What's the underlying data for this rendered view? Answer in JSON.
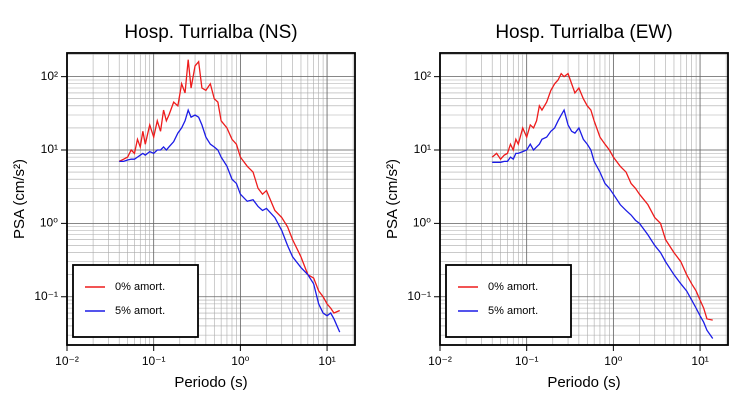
{
  "chart_data": [
    {
      "type": "line",
      "title": "Hosp. Turrialba (NS)",
      "x_label": "Periodo (s)",
      "y_label": "PSA (cm/s²)",
      "log_x": true,
      "log_y": true,
      "grid": true,
      "legend": "lower left",
      "xlim": [
        0.01,
        21
      ],
      "ylim": [
        0.022,
        210
      ],
      "xticks": [
        {
          "value": 0.01,
          "label": "10⁻²"
        },
        {
          "value": 0.1,
          "label": "10⁻¹"
        },
        {
          "value": 1,
          "label": "10⁰"
        },
        {
          "value": 10,
          "label": "10¹"
        }
      ],
      "yticks": [
        {
          "value": 0.1,
          "label": "10⁻¹"
        },
        {
          "value": 1,
          "label": "10⁰"
        },
        {
          "value": 10,
          "label": "10¹"
        },
        {
          "value": 100,
          "label": "10²"
        }
      ],
      "x": [
        0.04,
        0.045,
        0.05,
        0.055,
        0.06,
        0.065,
        0.07,
        0.075,
        0.08,
        0.09,
        0.1,
        0.11,
        0.12,
        0.13,
        0.14,
        0.15,
        0.17,
        0.19,
        0.21,
        0.23,
        0.25,
        0.27,
        0.3,
        0.33,
        0.36,
        0.4,
        0.45,
        0.5,
        0.55,
        0.6,
        0.7,
        0.8,
        0.9,
        1.0,
        1.2,
        1.4,
        1.6,
        1.8,
        2.0,
        2.5,
        3,
        3.5,
        4,
        5,
        6,
        7,
        8,
        9,
        10,
        11,
        12,
        14
      ],
      "series": [
        {
          "name": "0% amort.",
          "color": "#ee1c1c",
          "values": [
            7,
            7.5,
            8,
            10,
            9,
            14,
            11,
            18,
            12,
            22,
            15,
            25,
            18,
            35,
            25,
            30,
            45,
            40,
            80,
            60,
            170,
            70,
            140,
            160,
            70,
            65,
            80,
            50,
            45,
            25,
            20,
            14,
            12,
            8,
            6,
            5,
            3,
            2.5,
            2.8,
            1.5,
            1.2,
            0.9,
            0.6,
            0.35,
            0.2,
            0.18,
            0.12,
            0.1,
            0.08,
            0.07,
            0.06,
            0.065
          ]
        },
        {
          "name": "5% amort.",
          "color": "#1c1ce6",
          "values": [
            7,
            7,
            7.3,
            7.5,
            7.5,
            8,
            8.5,
            9,
            8.5,
            9.5,
            9,
            10,
            10,
            11,
            10,
            11,
            13,
            17,
            20,
            25,
            35,
            28,
            30,
            28,
            22,
            15,
            12,
            11,
            10,
            8,
            6,
            4,
            3.5,
            2.5,
            2,
            2.1,
            1.7,
            1.5,
            1.6,
            1.2,
            0.8,
            0.5,
            0.35,
            0.25,
            0.2,
            0.15,
            0.08,
            0.06,
            0.055,
            0.06,
            0.05,
            0.033
          ]
        }
      ]
    },
    {
      "type": "line",
      "title": "Hosp. Turrialba (EW)",
      "x_label": "Periodo (s)",
      "y_label": "PSA (cm/s²)",
      "log_x": true,
      "log_y": true,
      "grid": true,
      "legend": "lower left",
      "xlim": [
        0.01,
        21
      ],
      "ylim": [
        0.022,
        210
      ],
      "xticks": [
        {
          "value": 0.01,
          "label": "10⁻²"
        },
        {
          "value": 0.1,
          "label": "10⁻¹"
        },
        {
          "value": 1,
          "label": "10⁰"
        },
        {
          "value": 10,
          "label": "10¹"
        }
      ],
      "yticks": [
        {
          "value": 0.1,
          "label": "10⁻¹"
        },
        {
          "value": 1,
          "label": "10⁰"
        },
        {
          "value": 10,
          "label": "10¹"
        },
        {
          "value": 100,
          "label": "10²"
        }
      ],
      "x": [
        0.04,
        0.045,
        0.05,
        0.055,
        0.06,
        0.065,
        0.07,
        0.075,
        0.08,
        0.09,
        0.1,
        0.11,
        0.12,
        0.13,
        0.14,
        0.15,
        0.17,
        0.19,
        0.21,
        0.23,
        0.25,
        0.27,
        0.3,
        0.33,
        0.36,
        0.4,
        0.45,
        0.5,
        0.55,
        0.6,
        0.7,
        0.8,
        0.9,
        1.0,
        1.2,
        1.4,
        1.6,
        1.8,
        2.0,
        2.5,
        3,
        3.5,
        4,
        5,
        6,
        7,
        8,
        9,
        10,
        11,
        12,
        14
      ],
      "series": [
        {
          "name": "0% amort.",
          "color": "#ee1c1c",
          "values": [
            8,
            9,
            7.5,
            8.5,
            9,
            12,
            10,
            14,
            12,
            20,
            15,
            22,
            20,
            25,
            40,
            35,
            45,
            65,
            80,
            90,
            110,
            100,
            110,
            80,
            60,
            70,
            50,
            40,
            35,
            25,
            15,
            12,
            10,
            8,
            6,
            5,
            3.5,
            3,
            2.5,
            1.8,
            1.2,
            1,
            0.6,
            0.4,
            0.3,
            0.2,
            0.15,
            0.12,
            0.09,
            0.07,
            0.05,
            0.048
          ]
        },
        {
          "name": "5% amort.",
          "color": "#1c1ce6",
          "values": [
            6.8,
            6.8,
            6.8,
            7,
            7,
            8,
            7.5,
            9,
            9,
            9.5,
            10,
            12,
            10,
            11,
            12,
            14,
            15,
            18,
            20,
            25,
            30,
            35,
            22,
            18,
            17,
            20,
            14,
            12,
            10,
            7,
            5,
            3.5,
            3,
            2.5,
            1.8,
            1.5,
            1.3,
            1.1,
            1,
            0.7,
            0.5,
            0.4,
            0.3,
            0.2,
            0.15,
            0.12,
            0.09,
            0.07,
            0.055,
            0.045,
            0.035,
            0.027
          ]
        }
      ]
    }
  ]
}
